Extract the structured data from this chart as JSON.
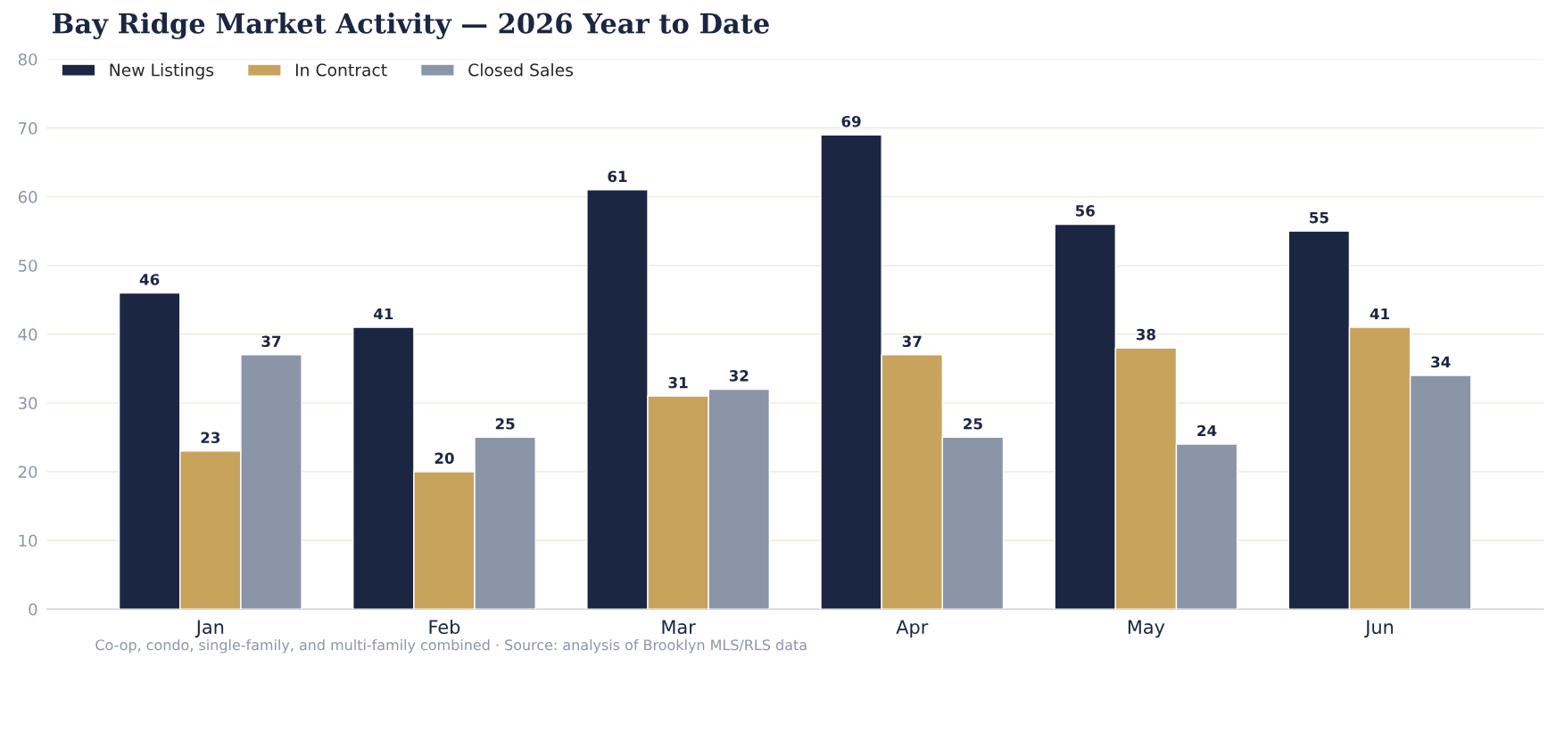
{
  "chart_data": {
    "type": "bar",
    "title": "Bay Ridge Market Activity — 2026 Year to Date",
    "categories": [
      "Jan",
      "Feb",
      "Mar",
      "Apr",
      "May",
      "Jun"
    ],
    "series": [
      {
        "name": "New Listings",
        "color": "#1b2642",
        "values": [
          46,
          41,
          61,
          69,
          56,
          55
        ]
      },
      {
        "name": "In Contract",
        "color": "#c8a35c",
        "values": [
          23,
          20,
          31,
          37,
          38,
          41
        ]
      },
      {
        "name": "Closed Sales",
        "color": "#8a95a8",
        "values": [
          37,
          25,
          32,
          25,
          24,
          34
        ]
      }
    ],
    "ylim": [
      0,
      80
    ],
    "yticks": [
      0,
      10,
      20,
      30,
      40,
      50,
      60,
      70,
      80
    ],
    "grid": "y",
    "legend": "top left",
    "data_labels": true,
    "annotations": [
      "Co-op, condo, single-family, and multi-family combined · Source: analysis of Brooklyn MLS/RLS data"
    ]
  }
}
